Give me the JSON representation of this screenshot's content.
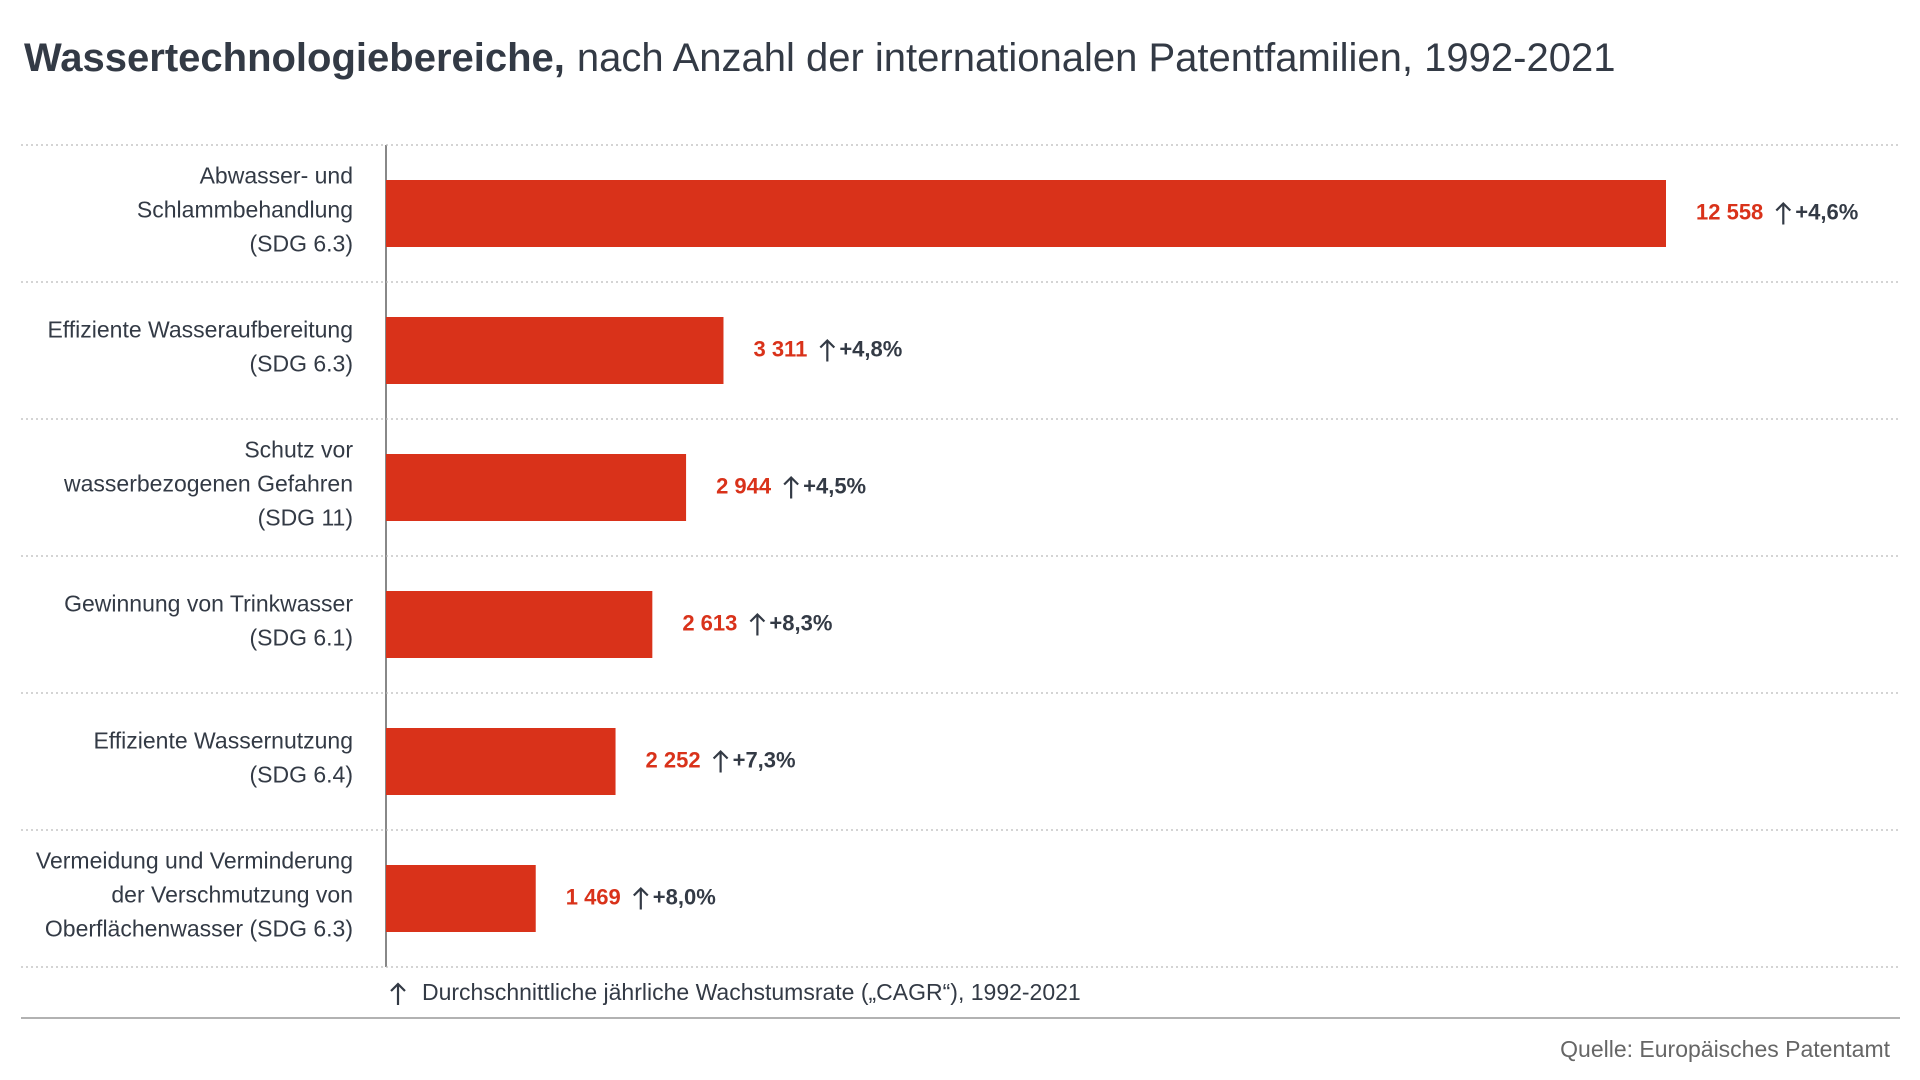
{
  "chart_data": {
    "type": "bar",
    "orientation": "horizontal",
    "title": "Wassertechnologiebereiche,",
    "subtitle": "nach Anzahl der internationalen Patentfamilien, 1992-2021",
    "categories": [
      [
        "Abwasser- und",
        "Schlammbehandlung",
        "(SDG 6.3)"
      ],
      [
        "Effiziente Wasseraufbereitung",
        "(SDG 6.3)"
      ],
      [
        "Schutz vor",
        "wasserbezogenen Gefahren",
        "(SDG 11)"
      ],
      [
        "Gewinnung von Trinkwasser",
        "(SDG 6.1)"
      ],
      [
        "Effiziente Wassernutzung",
        "(SDG 6.4)"
      ],
      [
        "Vermeidung und Verminderung",
        "der Verschmutzung von",
        "Oberflächenwasser (SDG 6.3)"
      ]
    ],
    "values": [
      12558,
      3311,
      2944,
      2613,
      2252,
      1469
    ],
    "value_labels": [
      "12 558",
      "3 311",
      "2 944",
      "2 613",
      "2 252",
      "1 469"
    ],
    "growth_labels": [
      "+4,6%",
      "+4,8%",
      "+4,5%",
      "+8,3%",
      "+7,3%",
      "+8,0%"
    ],
    "color": "#d9321a",
    "legend_note": "Durchschnittliche jährliche Wachstumsrate („CAGR“), 1992-2021",
    "source": "Quelle: Europäisches Patentamt"
  }
}
